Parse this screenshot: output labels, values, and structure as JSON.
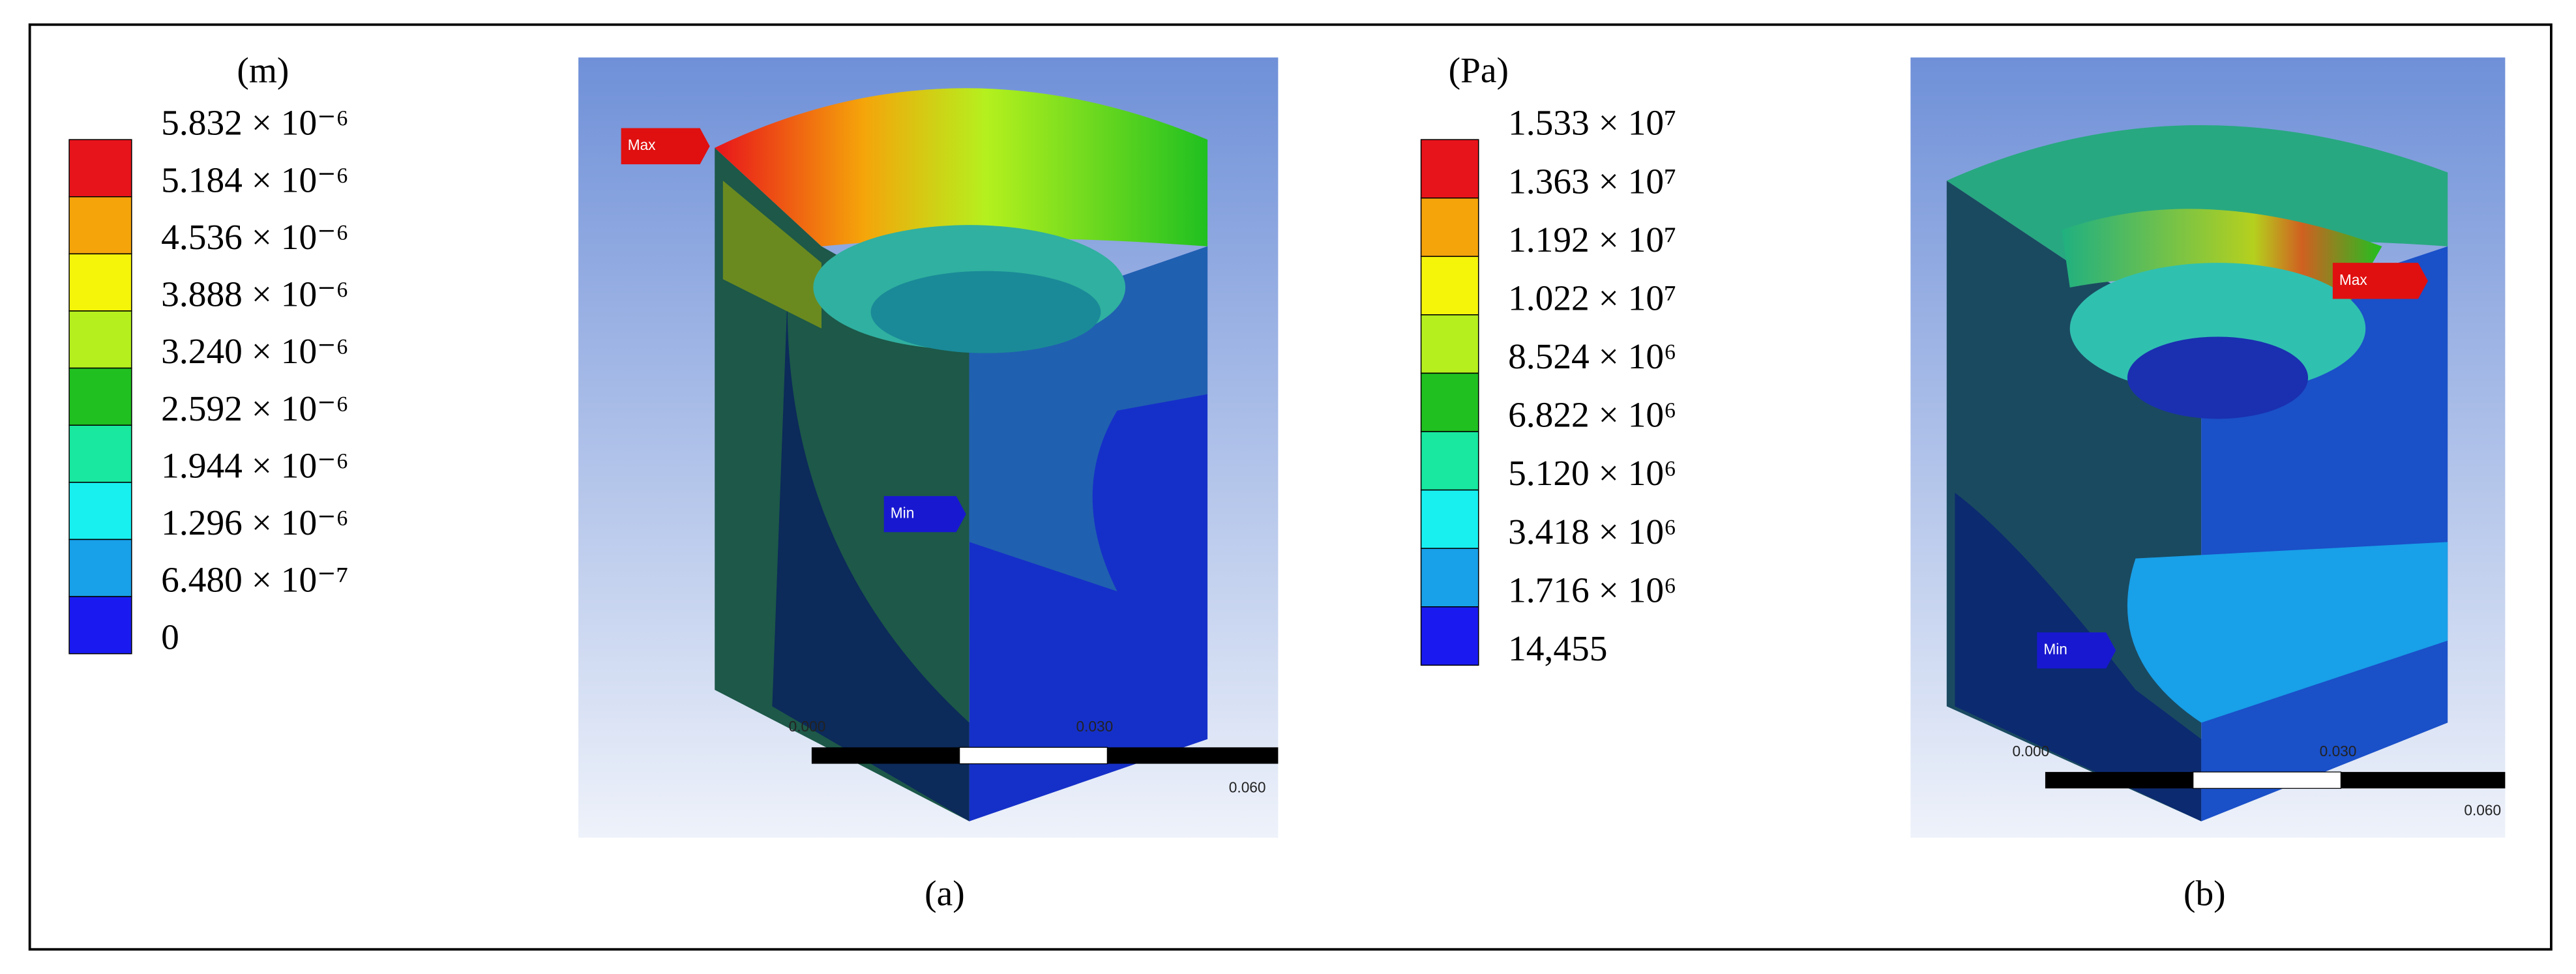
{
  "panels": [
    {
      "unit": "(m)",
      "labels": [
        "5.832 × 10⁻⁶",
        "5.184 × 10⁻⁶",
        "4.536 × 10⁻⁶",
        "3.888 × 10⁻⁶",
        "3.240 × 10⁻⁶",
        "2.592 × 10⁻⁶",
        "1.944 × 10⁻⁶",
        "1.296 × 10⁻⁶",
        "6.480 × 10⁻⁷",
        "0"
      ],
      "colors": [
        "#e8141b",
        "#f5a40a",
        "#f5f50a",
        "#b5f01e",
        "#20c020",
        "#18e8a0",
        "#18f0f0",
        "#18a0e8",
        "#1a1af0"
      ],
      "max_tag": "Max",
      "min_tag": "Min",
      "scale_labels": [
        "0.000",
        "0.030",
        "0.060"
      ],
      "caption": "(a)"
    },
    {
      "unit": "(Pa)",
      "labels": [
        "1.533 × 10⁷",
        "1.363 × 10⁷",
        "1.192 × 10⁷",
        "1.022 × 10⁷",
        "8.524 × 10⁶",
        "6.822 × 10⁶",
        "5.120 × 10⁶",
        "3.418 × 10⁶",
        "1.716 × 10⁶",
        "14,455"
      ],
      "colors": [
        "#e8141b",
        "#f5a40a",
        "#f5f50a",
        "#b5f01e",
        "#20c020",
        "#18e8a0",
        "#18f0f0",
        "#18a0e8",
        "#1a1af0"
      ],
      "max_tag": "Max",
      "min_tag": "Min",
      "scale_labels": [
        "0.000",
        "0.030",
        "0.060"
      ],
      "caption": "(b)"
    }
  ]
}
